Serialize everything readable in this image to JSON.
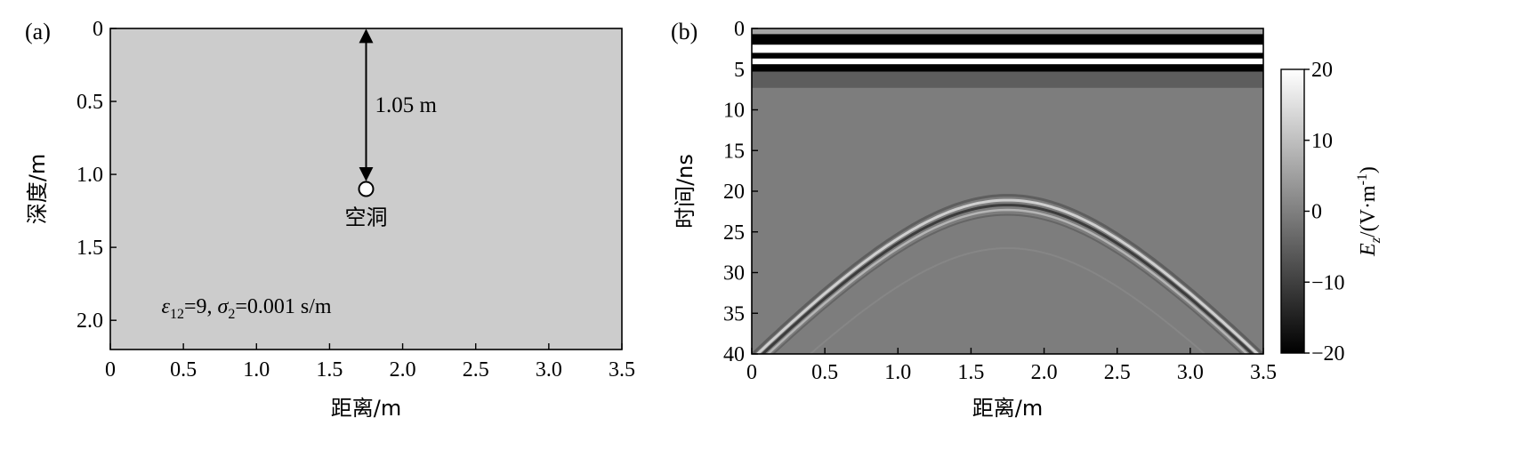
{
  "chart_data": [
    {
      "panel_label": "(a)",
      "type": "diagram",
      "xlabel": "距离/m",
      "ylabel": "深度/m",
      "xlim": [
        0,
        3.5
      ],
      "ylim": [
        0,
        2.2
      ],
      "y_inverted": true,
      "xticks": [
        0,
        0.5,
        1.0,
        1.5,
        2.0,
        2.5,
        3.0,
        3.5
      ],
      "xtick_labels": [
        "0",
        "0.5",
        "1.0",
        "1.5",
        "2.0",
        "2.5",
        "3.0",
        "3.5"
      ],
      "yticks": [
        0,
        0.5,
        1.0,
        1.5,
        2.0
      ],
      "ytick_labels": [
        "0",
        "0.5",
        "1.0",
        "1.5",
        "2.0"
      ],
      "background_color": "#cccccc",
      "cavity": {
        "x": 1.75,
        "depth": 1.1,
        "label": "空洞"
      },
      "arrow": {
        "x": 1.75,
        "from_depth": 0,
        "to_depth": 1.05,
        "label": "1.05 m"
      },
      "annotation": {
        "eps_symbol": "ε",
        "eps_sub": "12",
        "eps_value": "=9, ",
        "sigma_symbol": "σ",
        "sigma_sub": "2",
        "sigma_value": "=0.001 s/m"
      }
    },
    {
      "panel_label": "(b)",
      "type": "heatmap",
      "xlabel": "距离/m",
      "ylabel": "时间/ns",
      "xlim": [
        0,
        3.5
      ],
      "ylim": [
        0,
        40
      ],
      "y_inverted": true,
      "xticks": [
        0,
        0.5,
        1.0,
        1.5,
        2.0,
        2.5,
        3.0,
        3.5
      ],
      "xtick_labels": [
        "0",
        "0.5",
        "1.0",
        "1.5",
        "2.0",
        "2.5",
        "3.0",
        "3.5"
      ],
      "yticks": [
        0,
        5,
        10,
        15,
        20,
        25,
        30,
        35,
        40
      ],
      "ytick_labels": [
        "0",
        "5",
        "10",
        "15",
        "20",
        "25",
        "30",
        "35",
        "40"
      ],
      "direct_wave_bands_ns": [
        {
          "from": 0,
          "to": 0.7,
          "value": 6
        },
        {
          "from": 0.7,
          "to": 2.0,
          "value": -20
        },
        {
          "from": 2.0,
          "to": 3.0,
          "value": 20
        },
        {
          "from": 3.0,
          "to": 3.7,
          "value": -20
        },
        {
          "from": 3.7,
          "to": 4.4,
          "value": 20
        },
        {
          "from": 4.4,
          "to": 5.3,
          "value": -20
        },
        {
          "from": 5.3,
          "to": 7.3,
          "value": -5
        }
      ],
      "hyperbola": {
        "apex_x": 1.75,
        "apex_t_ns": 21.5,
        "velocity_m_per_ns": 0.1
      },
      "colorbar": {
        "label_main": "E",
        "label_sub": "z",
        "label_rest": "/(V·m",
        "label_sup": "-1",
        "label_close": ")",
        "range": [
          -20,
          20
        ],
        "ticks": [
          20,
          10,
          0,
          -10,
          -20
        ],
        "tick_labels": [
          "20",
          "10",
          "0",
          "−10",
          "−20"
        ]
      }
    }
  ]
}
